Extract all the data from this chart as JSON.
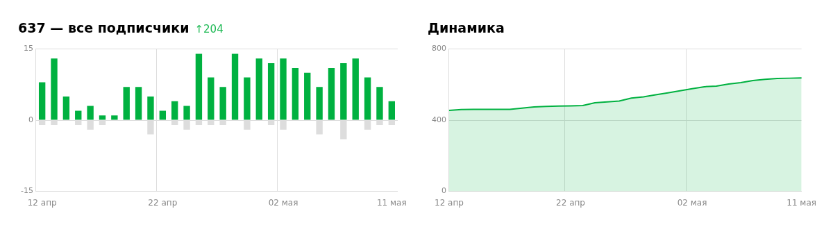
{
  "chart_data": [
    {
      "type": "bar",
      "title": "637 — все подписчики",
      "subtitle": "↑204",
      "stacked": true,
      "grid": true,
      "categories": [
        "12 апр",
        null,
        null,
        null,
        null,
        null,
        null,
        null,
        null,
        null,
        "22 апр",
        null,
        null,
        null,
        null,
        null,
        null,
        null,
        null,
        null,
        "02 мая",
        null,
        null,
        null,
        null,
        null,
        null,
        null,
        null,
        "11 мая"
      ],
      "series": [
        {
          "color": "#00b140",
          "values": [
            8,
            13,
            5,
            2,
            3,
            1,
            1,
            7,
            7,
            5,
            2,
            4,
            3,
            14,
            9,
            7,
            14,
            9,
            13,
            12,
            13,
            11,
            10,
            7,
            11,
            12,
            13,
            9,
            7,
            4
          ]
        },
        {
          "color": "#dddddd",
          "values": [
            -1,
            -1,
            null,
            -1,
            -2,
            -1,
            null,
            null,
            null,
            -3,
            null,
            -1,
            -2,
            -1,
            -1,
            -1,
            null,
            -2,
            null,
            -1,
            -2,
            null,
            null,
            -3,
            null,
            -4,
            null,
            -2,
            -1,
            -1
          ]
        }
      ],
      "ylim": [
        -15,
        15
      ],
      "yticks": [
        -15,
        0,
        15
      ]
    },
    {
      "type": "area",
      "title": "Динамика",
      "grid": true,
      "categories": [
        "12 апр",
        null,
        null,
        null,
        null,
        null,
        null,
        null,
        null,
        null,
        "22 апр",
        null,
        null,
        null,
        null,
        null,
        null,
        null,
        null,
        null,
        "02 мая",
        null,
        null,
        null,
        null,
        null,
        null,
        null,
        null,
        "11 мая"
      ],
      "series": [
        {
          "color": "#00b140",
          "values": [
            455,
            460,
            461,
            461,
            461,
            461,
            468,
            475,
            477,
            479,
            480,
            482,
            498,
            503,
            508,
            524,
            531,
            543,
            554,
            565,
            577,
            588,
            592,
            603,
            611,
            623,
            630,
            635,
            636,
            637
          ]
        }
      ],
      "ylim": [
        0,
        800
      ],
      "yticks": [
        0,
        400,
        800
      ]
    }
  ]
}
